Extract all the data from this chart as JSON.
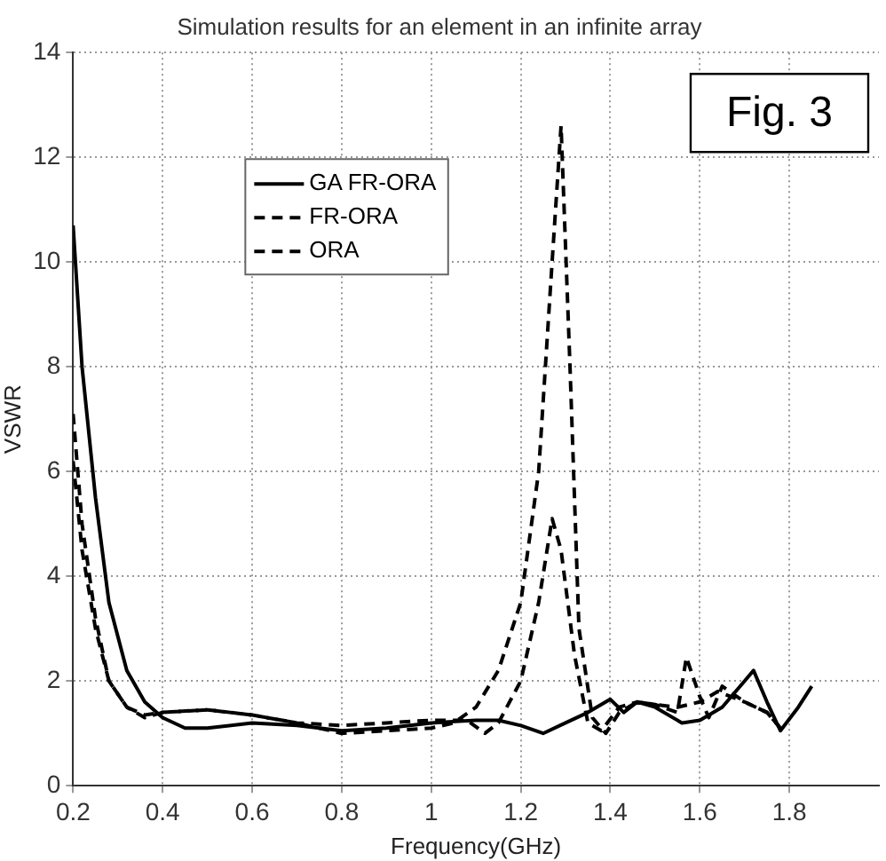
{
  "chart_data": {
    "type": "line",
    "title": "Simulation results for an element in an infinite array",
    "xlabel": "Frequency(GHz)",
    "ylabel": "VSWR",
    "xlim": [
      0.2,
      2
    ],
    "xticks": [
      0.2,
      0.4,
      0.6,
      0.8,
      {
        "value": 1,
        "label": "1"
      },
      1.2,
      1.4,
      1.6,
      1.8
    ],
    "ylim": [
      0,
      14
    ],
    "yticks": [
      0,
      2,
      4,
      6,
      8,
      10,
      12,
      14
    ],
    "grid": true,
    "legend": "top left",
    "marker": "none",
    "annotations": [
      "Fig. 3"
    ],
    "series": [
      {
        "name": "GA FR-ORA",
        "color": "#000000",
        "line_style": "solid",
        "x": [
          0.2,
          0.22,
          0.25,
          0.28,
          0.32,
          0.36,
          0.4,
          0.45,
          0.5,
          0.6,
          0.7,
          0.8,
          0.9,
          1.0,
          1.1,
          1.15,
          1.2,
          1.25,
          1.3,
          1.35,
          1.4,
          1.43,
          1.46,
          1.5,
          1.56,
          1.6,
          1.65,
          1.7,
          1.72,
          1.75,
          1.78,
          1.82,
          1.85
        ],
        "values": [
          10.7,
          8,
          5.5,
          3.5,
          2.2,
          1.6,
          1.3,
          1.1,
          1.1,
          1.2,
          1.15,
          1.05,
          1.1,
          1.2,
          1.25,
          1.25,
          1.15,
          1.0,
          1.2,
          1.4,
          1.65,
          1.4,
          1.6,
          1.5,
          1.2,
          1.25,
          1.5,
          2.0,
          2.2,
          1.6,
          1.05,
          1.5,
          1.9
        ]
      },
      {
        "name": "FR-ORA",
        "color": "#000000",
        "line_style": "dashed",
        "x": [
          0.2,
          0.22,
          0.25,
          0.28,
          0.32,
          0.36,
          0.4,
          0.5,
          0.6,
          0.7,
          0.8,
          0.9,
          1.0,
          1.08,
          1.12,
          1.15,
          1.2,
          1.24,
          1.27,
          1.29,
          1.32,
          1.35,
          1.38,
          1.42,
          1.46,
          1.5,
          1.55,
          1.57,
          1.6,
          1.62,
          1.65,
          1.7,
          1.75,
          1.78
        ],
        "values": [
          6.2,
          4.5,
          3,
          2,
          1.5,
          1.3,
          1.4,
          1.45,
          1.35,
          1.2,
          1.15,
          1.2,
          1.25,
          1.25,
          1.0,
          1.2,
          2.0,
          3.5,
          5.1,
          4.5,
          2.5,
          1.2,
          1.05,
          1.5,
          1.6,
          1.55,
          1.4,
          2.45,
          1.7,
          1.3,
          1.9,
          1.6,
          1.4,
          1.1
        ]
      },
      {
        "name": "ORA",
        "color": "#000000",
        "line_style": "dashed",
        "x": [
          0.2,
          0.22,
          0.25,
          0.28,
          0.32,
          0.36,
          0.4,
          0.5,
          0.6,
          0.7,
          0.8,
          0.9,
          1.0,
          1.05,
          1.1,
          1.15,
          1.2,
          1.24,
          1.27,
          1.29,
          1.31,
          1.33,
          1.36,
          1.39,
          1.42,
          1.46,
          1.5,
          1.55,
          1.6,
          1.64,
          1.7,
          1.75,
          1.78
        ],
        "values": [
          7.1,
          5,
          3.2,
          2.0,
          1.5,
          1.35,
          1.4,
          1.45,
          1.35,
          1.2,
          1.0,
          1.05,
          1.1,
          1.2,
          1.5,
          2.2,
          3.5,
          6,
          10,
          12.6,
          8,
          3,
          1.3,
          1.0,
          1.4,
          1.6,
          1.55,
          1.5,
          1.6,
          1.8,
          1.6,
          1.4,
          1.1
        ]
      }
    ]
  }
}
